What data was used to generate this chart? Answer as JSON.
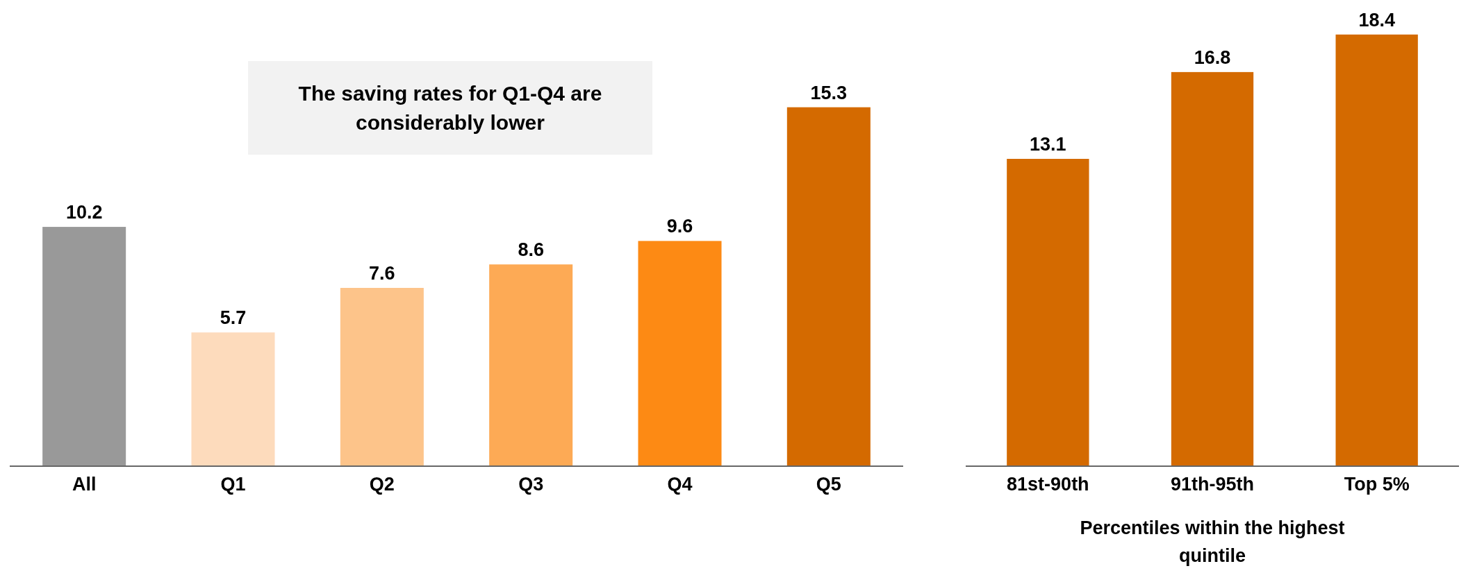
{
  "chart_data": [
    {
      "type": "bar",
      "categories": [
        "All",
        "Q1",
        "Q2",
        "Q3",
        "Q4",
        "Q5"
      ],
      "values": [
        10.2,
        5.7,
        7.6,
        8.6,
        9.6,
        15.3
      ],
      "colors": [
        "#999999",
        "#fddbbc",
        "#fdc48a",
        "#fdaa55",
        "#fd8a14",
        "#d46a00"
      ],
      "data_labels": true,
      "annotations": [
        "The saving rates for Q1-Q4 are considerably lower"
      ]
    },
    {
      "type": "bar",
      "categories": [
        "81st-90th",
        "91th-95th",
        "Top 5%"
      ],
      "values": [
        13.1,
        16.8,
        18.4
      ],
      "colors": [
        "#d46a00",
        "#d46a00",
        "#d46a00"
      ],
      "data_labels": true,
      "xlabel": "Percentiles within the highest quintile"
    }
  ]
}
